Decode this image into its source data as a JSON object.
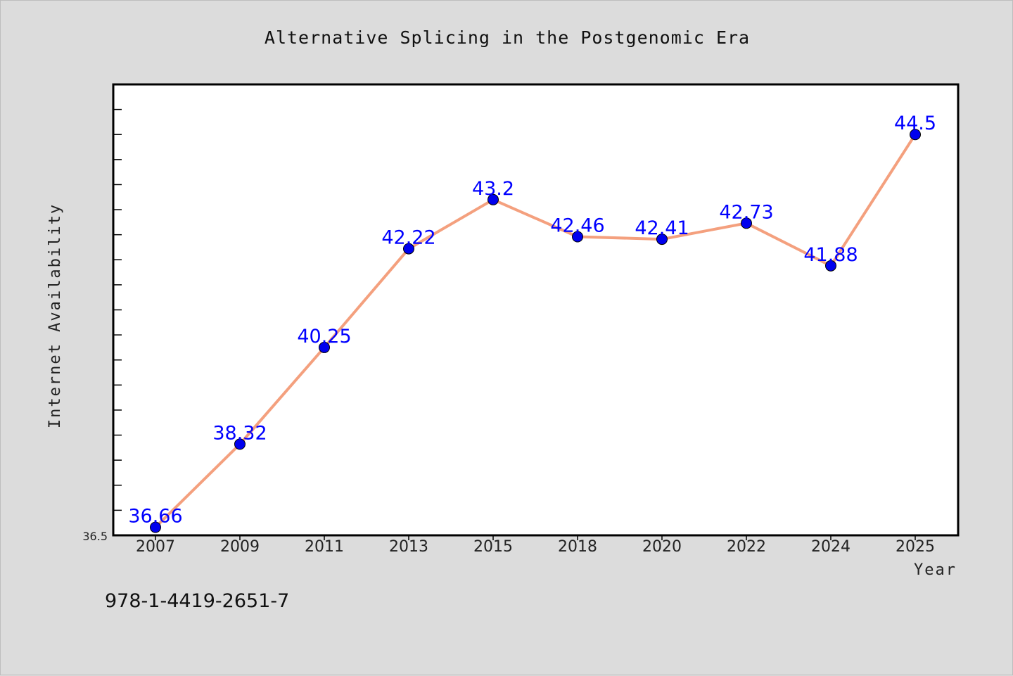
{
  "figure": {
    "background": "#dcdcdc",
    "footer_text": "978-1-4419-2651-7"
  },
  "chart_data": {
    "type": "line",
    "title": "Alternative Splicing in the Postgenomic Era",
    "xlabel": "Year",
    "ylabel": "Internet Availability",
    "categories": [
      "2007",
      "2009",
      "2011",
      "2013",
      "2015",
      "2018",
      "2020",
      "2022",
      "2024",
      "2025"
    ],
    "series": [
      {
        "values": [
          36.66,
          38.32,
          40.25,
          42.22,
          43.2,
          42.46,
          42.41,
          42.73,
          41.88,
          44.5
        ],
        "line_color": "#f4a07e",
        "marker_color": "#0000ee"
      }
    ],
    "data_labels": [
      "36.66",
      "38.32",
      "40.25",
      "42.22",
      "43.2",
      "42.46",
      "42.41",
      "42.73",
      "41.88",
      "44.5"
    ],
    "ylim": [
      36.5,
      45.5
    ],
    "y_tick_labels": [
      "36.5"
    ],
    "grid": false,
    "legend": "none",
    "data_label_color": "#0000ff",
    "plot_background": "#ffffff"
  }
}
